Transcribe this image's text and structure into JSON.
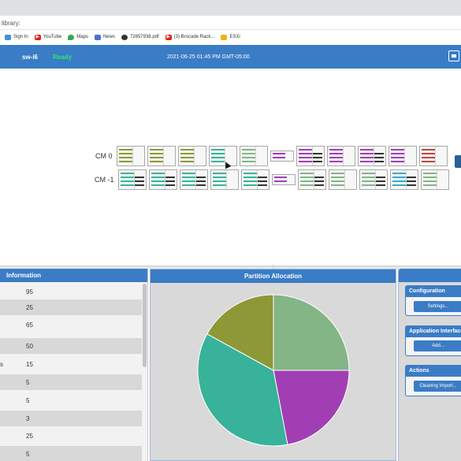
{
  "browser": {
    "address_text": "library:",
    "bookmarks": [
      {
        "label": "Sign In",
        "icon": "blank-page-icon",
        "color": "#4a8fd6"
      },
      {
        "label": "YouTube",
        "icon": "youtube-icon",
        "color": "#e62117"
      },
      {
        "label": "Maps",
        "icon": "maps-icon",
        "color": "#34a853"
      },
      {
        "label": "News",
        "icon": "news-icon",
        "color": "#4a6fd6"
      },
      {
        "label": "72657938.pdf",
        "icon": "globe-icon",
        "color": "#333333"
      },
      {
        "label": "(3) Brocade Rack...",
        "icon": "youtube-icon",
        "color": "#e62117"
      },
      {
        "label": "ESXi",
        "icon": "bookmark-icon",
        "color": "#f2b01e"
      }
    ]
  },
  "header": {
    "switch_name": "sw-i6",
    "status": "Ready",
    "datetime": "2021-06-25 01:45 PM GMT-05:00",
    "accent": "#3a7cc6",
    "status_color": "#2ee86a"
  },
  "chassis": {
    "rows": [
      {
        "label": "CM 0",
        "cards": [
          "olive",
          "olive",
          "olive",
          "teal",
          "sage",
          "short-purple",
          "purple-dark",
          "purple",
          "purple-dark",
          "purple",
          "red"
        ]
      },
      {
        "label": "CM -1",
        "cards": [
          "teal-dark",
          "teal-dark",
          "teal-dark",
          "teal",
          "teal-dark",
          "short-purple",
          "sage-dark",
          "sage",
          "sage-dark",
          "cyan-dark",
          "sage"
        ]
      }
    ]
  },
  "information": {
    "title": "Information",
    "rows": [
      {
        "label": "",
        "value": "95"
      },
      {
        "label": "",
        "value": "25"
      },
      {
        "label": "",
        "value": "65"
      },
      {
        "label": "",
        "value": "50"
      },
      {
        "label": "s",
        "value": "15"
      },
      {
        "label": "",
        "value": "5"
      },
      {
        "label": "",
        "value": "5"
      },
      {
        "label": "",
        "value": "3"
      },
      {
        "label": "",
        "value": "25"
      },
      {
        "label": "",
        "value": "5"
      }
    ]
  },
  "partition": {
    "title": "Partition Allocation",
    "slices": [
      {
        "value": 25,
        "color": "#83b586"
      },
      {
        "value": 22,
        "color": "#a23eb4"
      },
      {
        "value": 36,
        "color": "#38b29a"
      },
      {
        "value": 17,
        "color": "#8e9836"
      }
    ]
  },
  "actions_panel": {
    "sections": [
      {
        "title": "Configuration",
        "button": "Settings..."
      },
      {
        "title": "Application Interface",
        "button": "Add..."
      },
      {
        "title": "Actions",
        "button": "Cleaning Import..."
      }
    ]
  }
}
